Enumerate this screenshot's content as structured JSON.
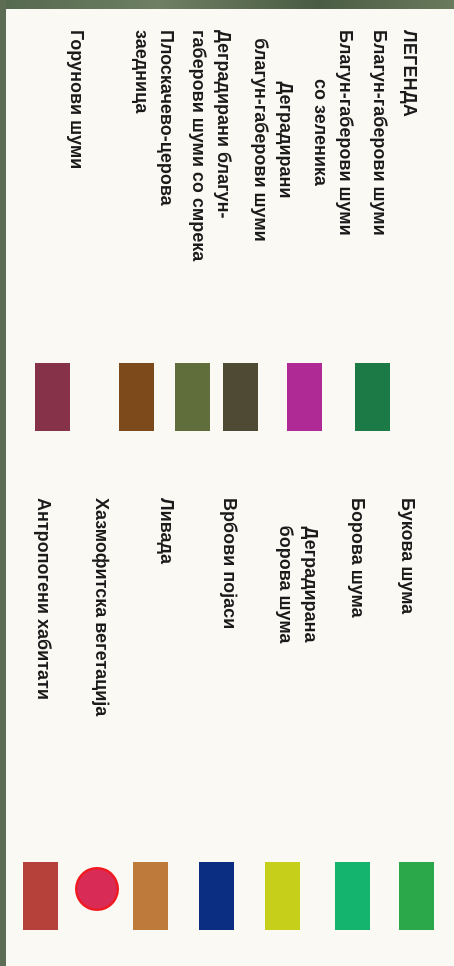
{
  "legend": {
    "title": "ЛЕГЕНДА",
    "left_items": [
      {
        "label": "Благун-габерови шуми",
        "color": "#1b7a45"
      },
      {
        "label": "Благун-габерови шуми\nсо зеленика",
        "color": "#b02a95"
      },
      {
        "label": "Деградирани\nблагун-габерови шуми",
        "color": "#4f4a34"
      },
      {
        "label": "Деградирани благун-\nгаберови шуми со смрека",
        "color": "#5f6e3a"
      },
      {
        "label": "Плоскачево-церова\nзаедница",
        "color": "#7d4a1c"
      },
      {
        "label": "Горунови шуми",
        "color": "#86334a"
      }
    ],
    "right_items": [
      {
        "label": "Букова шума",
        "color": "#2ba84a"
      },
      {
        "label": "Борова шума",
        "color": "#14b36e"
      },
      {
        "label": "Деградирана\nборова шума",
        "color": "#c6cf19"
      },
      {
        "label": "Врбови појаси",
        "color": "#0c2e82"
      },
      {
        "label": "Ливада",
        "color": "#bd7a3a"
      },
      {
        "label": "Хазмофитска вегетација",
        "color": "#d82b55"
      },
      {
        "label": "Антропогени хабитати",
        "color": "#b6413a"
      }
    ]
  }
}
